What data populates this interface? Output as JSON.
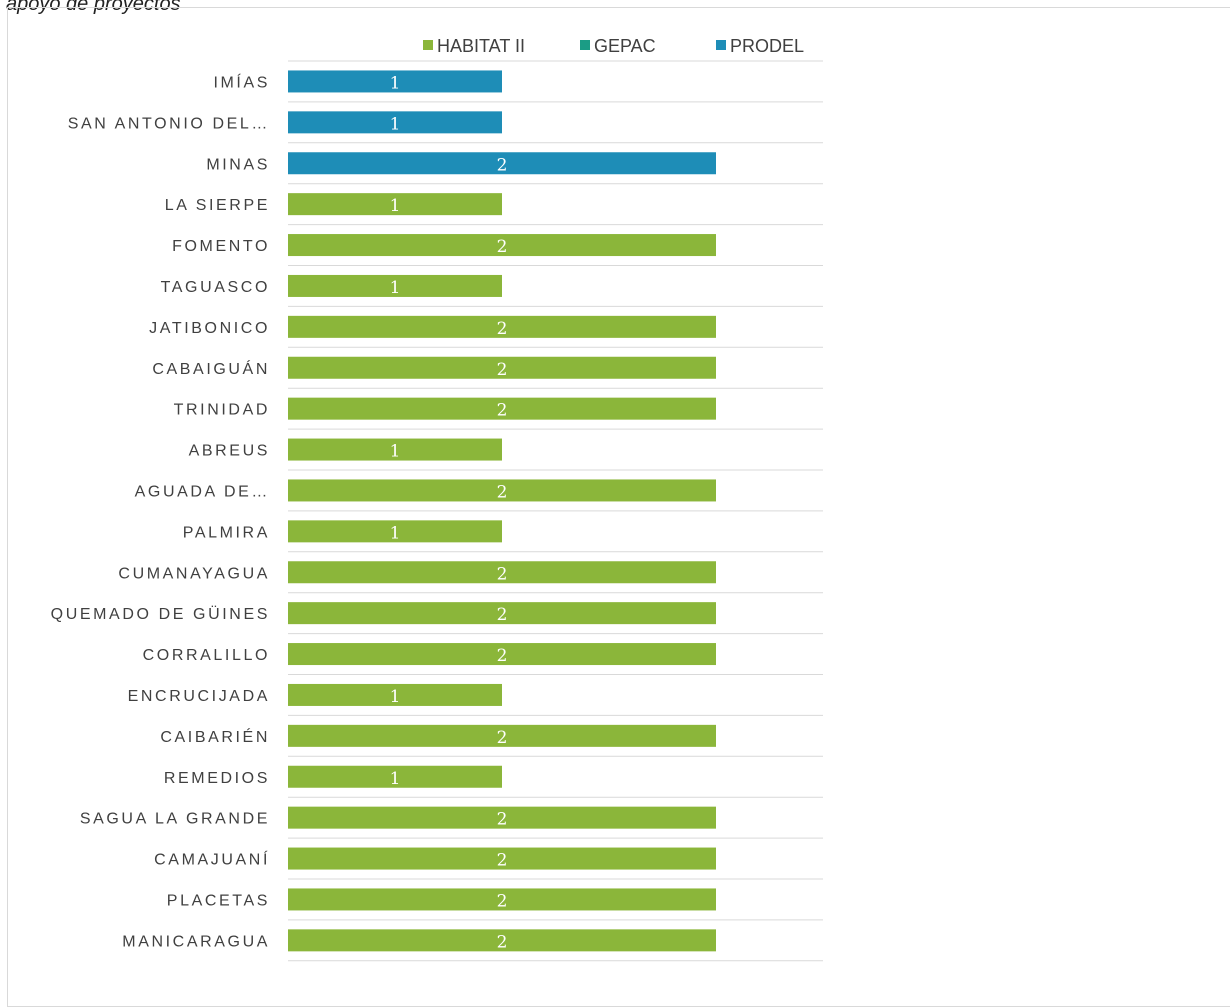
{
  "caption": "apoyo de proyectos",
  "chart_data": {
    "type": "bar",
    "orientation": "horizontal",
    "legend_position": "top",
    "grid": true,
    "xlim": [
      0,
      2.5
    ],
    "series": [
      {
        "name": "HABITAT II",
        "color": "#8BB63A"
      },
      {
        "name": "GEPAC",
        "color": "#1B9C85"
      },
      {
        "name": "PRODEL",
        "color": "#1E8DB7"
      }
    ],
    "categories": [
      {
        "label": "IMÍAS",
        "series": "PRODEL",
        "value": 1
      },
      {
        "label": "SAN ANTONIO DEL…",
        "series": "PRODEL",
        "value": 1
      },
      {
        "label": "MINAS",
        "series": "PRODEL",
        "value": 2
      },
      {
        "label": "LA SIERPE",
        "series": "HABITAT II",
        "value": 1
      },
      {
        "label": "FOMENTO",
        "series": "HABITAT II",
        "value": 2
      },
      {
        "label": "TAGUASCO",
        "series": "HABITAT II",
        "value": 1
      },
      {
        "label": "JATIBONICO",
        "series": "HABITAT II",
        "value": 2
      },
      {
        "label": "CABAIGUÁN",
        "series": "HABITAT II",
        "value": 2
      },
      {
        "label": "TRINIDAD",
        "series": "HABITAT II",
        "value": 2
      },
      {
        "label": "ABREUS",
        "series": "HABITAT II",
        "value": 1
      },
      {
        "label": "AGUADA DE…",
        "series": "HABITAT II",
        "value": 2
      },
      {
        "label": "PALMIRA",
        "series": "HABITAT II",
        "value": 1
      },
      {
        "label": "CUMANAYAGUA",
        "series": "HABITAT II",
        "value": 2
      },
      {
        "label": "QUEMADO DE GÜINES",
        "series": "HABITAT II",
        "value": 2
      },
      {
        "label": "CORRALILLO",
        "series": "HABITAT II",
        "value": 2
      },
      {
        "label": "ENCRUCIJADA",
        "series": "HABITAT II",
        "value": 1
      },
      {
        "label": "CAIBARIÉN",
        "series": "HABITAT II",
        "value": 2
      },
      {
        "label": "REMEDIOS",
        "series": "HABITAT II",
        "value": 1
      },
      {
        "label": "SAGUA LA GRANDE",
        "series": "HABITAT II",
        "value": 2
      },
      {
        "label": "CAMAJUANÍ",
        "series": "HABITAT II",
        "value": 2
      },
      {
        "label": "PLACETAS",
        "series": "HABITAT II",
        "value": 2
      },
      {
        "label": "MANICARAGUA",
        "series": "HABITAT II",
        "value": 2
      }
    ]
  }
}
